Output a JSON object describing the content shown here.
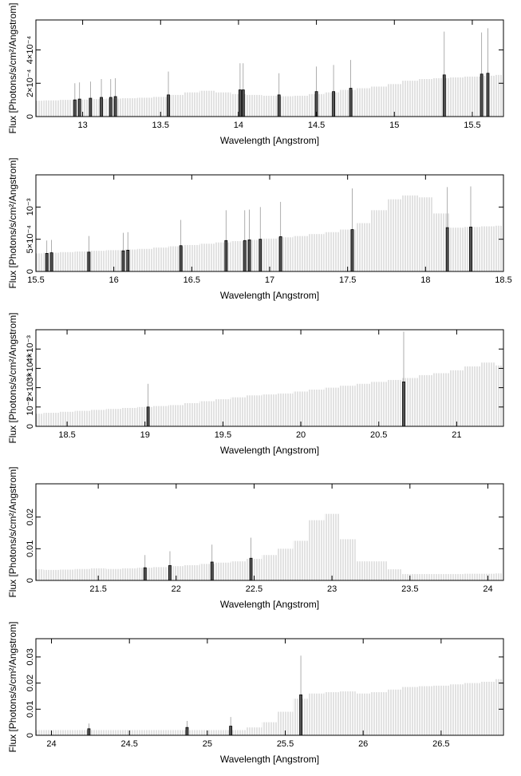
{
  "chart_data": [
    {
      "type": "bar",
      "xlabel": "Wavelength [Angstrom]",
      "ylabel": "Flux [Photons/s/cm²/Angstrom]",
      "color": "#c8c8c8",
      "xlim": [
        12.7,
        15.7
      ],
      "xticks": [
        13,
        13.5,
        14,
        14.5,
        15,
        15.5
      ],
      "ylim": [
        0,
        0.00058
      ],
      "yticks": [
        0,
        {
          "value": 0.0002,
          "label": "2×10⁻⁴"
        },
        {
          "value": 0.0004,
          "label": "4×10⁻⁴"
        }
      ],
      "x": [
        12.7,
        12.8,
        12.9,
        13.0,
        13.1,
        13.2,
        13.3,
        13.4,
        13.5,
        13.6,
        13.7,
        13.8,
        13.9,
        14.0,
        14.1,
        14.2,
        14.3,
        14.4,
        14.5,
        14.6,
        14.7,
        14.8,
        14.9,
        15.0,
        15.1,
        15.2,
        15.3,
        15.4,
        15.5,
        15.6,
        15.7
      ],
      "values": [
        9.5e-05,
        9.7e-05,
        0.0001,
        0.000102,
        0.000105,
        0.000108,
        0.00011,
        0.000113,
        0.000118,
        0.00013,
        0.000145,
        0.000155,
        0.000145,
        0.000135,
        0.00013,
        0.000125,
        0.000122,
        0.000125,
        0.000135,
        0.000145,
        0.00016,
        0.00017,
        0.00018,
        0.000195,
        0.000215,
        0.000225,
        0.00023,
        0.000235,
        0.00024,
        0.000245,
        0.00025
      ],
      "lines": {
        "x": [
          12.95,
          12.98,
          13.05,
          13.12,
          13.18,
          13.21,
          13.55,
          14.01,
          14.03,
          14.26,
          14.5,
          14.61,
          14.72,
          15.32,
          15.56,
          15.6
        ],
        "values": [
          0.0001,
          0.000105,
          0.00011,
          0.000115,
          0.000115,
          0.00012,
          0.00013,
          0.00016,
          0.00016,
          0.00013,
          0.00015,
          0.00015,
          0.00017,
          0.00025,
          0.000255,
          0.00026
        ],
        "errors": [
          0.0001,
          0.0001,
          0.0001,
          0.00011,
          0.00011,
          0.00011,
          0.00014,
          0.00016,
          0.00016,
          0.00013,
          0.00015,
          0.00016,
          0.00017,
          0.00026,
          0.00025,
          0.00027
        ]
      }
    },
    {
      "type": "bar",
      "xlabel": "Wavelength [Angstrom]",
      "ylabel": "Flux [Photons/s/cm²/Angstrom]",
      "color": "#c8c8c8",
      "xlim": [
        15.5,
        18.5
      ],
      "xticks": [
        15.5,
        16,
        16.5,
        17,
        17.5,
        18,
        18.5
      ],
      "ylim": [
        0,
        0.0015
      ],
      "yticks": [
        0,
        {
          "value": 0.0005,
          "label": "5×10⁻⁴"
        },
        {
          "value": 0.001,
          "label": "10⁻³"
        }
      ],
      "x": [
        15.5,
        15.6,
        15.7,
        15.8,
        15.9,
        16.0,
        16.1,
        16.2,
        16.3,
        16.4,
        16.5,
        16.6,
        16.7,
        16.8,
        16.9,
        17.0,
        17.1,
        17.2,
        17.3,
        17.4,
        17.5,
        17.6,
        17.7,
        17.8,
        17.9,
        18.0,
        18.1,
        18.2,
        18.3,
        18.4,
        18.5
      ],
      "values": [
        0.00028,
        0.00029,
        0.0003,
        0.00031,
        0.00032,
        0.00033,
        0.00034,
        0.00035,
        0.00037,
        0.00039,
        0.00041,
        0.00043,
        0.00045,
        0.00047,
        0.00049,
        0.00051,
        0.00053,
        0.00055,
        0.00058,
        0.00061,
        0.00065,
        0.00075,
        0.00095,
        0.00112,
        0.00118,
        0.00115,
        0.0009,
        0.00068,
        0.00069,
        0.0007,
        0.00071
      ],
      "lines": {
        "x": [
          15.57,
          15.6,
          15.84,
          16.06,
          16.09,
          16.43,
          16.72,
          16.84,
          16.87,
          16.94,
          17.07,
          17.53,
          18.14,
          18.29
        ],
        "values": [
          0.00028,
          0.00029,
          0.0003,
          0.00032,
          0.00033,
          0.0004,
          0.00048,
          0.00048,
          0.00049,
          0.0005,
          0.00054,
          0.00065,
          0.00068,
          0.00069
        ],
        "errors": [
          0.0002,
          0.0002,
          0.00025,
          0.00028,
          0.00028,
          0.0004,
          0.00047,
          0.00047,
          0.00047,
          0.0005,
          0.00054,
          0.00064,
          0.00063,
          0.00063
        ]
      }
    },
    {
      "type": "bar",
      "xlabel": "Wavelength [Angstrom]",
      "ylabel": "Flux [Photons/s/cm²/Angstrom]",
      "color": "#c8c8c8",
      "xlim": [
        18.3,
        21.3
      ],
      "xticks": [
        18.5,
        19,
        19.5,
        20,
        20.5,
        21
      ],
      "ylim": [
        0,
        0.005
      ],
      "yticks": [
        0,
        {
          "value": 0.001,
          "label": "10⁻³"
        },
        {
          "value": 0.002,
          "label": "2×10⁻³"
        },
        {
          "value": 0.003,
          "label": "3×10⁻³"
        },
        {
          "value": 0.004,
          "label": "4×10⁻³"
        }
      ],
      "x": [
        18.3,
        18.4,
        18.5,
        18.6,
        18.7,
        18.8,
        18.9,
        19.0,
        19.1,
        19.2,
        19.3,
        19.4,
        19.5,
        19.6,
        19.7,
        19.8,
        19.9,
        20.0,
        20.1,
        20.2,
        20.3,
        20.4,
        20.5,
        20.6,
        20.7,
        20.8,
        20.9,
        21.0,
        21.1,
        21.2,
        21.3
      ],
      "values": [
        0.00065,
        0.0007,
        0.00075,
        0.0008,
        0.00085,
        0.0009,
        0.00095,
        0.001,
        0.00105,
        0.0011,
        0.0012,
        0.0013,
        0.0014,
        0.0015,
        0.0016,
        0.00165,
        0.0017,
        0.0018,
        0.0019,
        0.002,
        0.0021,
        0.0022,
        0.0023,
        0.0024,
        0.0025,
        0.00265,
        0.00275,
        0.0029,
        0.0031,
        0.0033,
        0.00315
      ],
      "lines": {
        "x": [
          19.02,
          20.66
        ],
        "values": [
          0.001,
          0.0023
        ],
        "errors": [
          0.0012,
          0.0026
        ]
      }
    },
    {
      "type": "bar",
      "xlabel": "Wavelength [Angstrom]",
      "ylabel": "Flux [Photons/s/cm²/Angstrom]",
      "color": "#c8c8c8",
      "xlim": [
        21.1,
        24.1
      ],
      "xticks": [
        21.5,
        22,
        22.5,
        23,
        23.5,
        24
      ],
      "ylim": [
        0,
        0.0305
      ],
      "yticks": [
        0,
        0.01,
        0.02
      ],
      "x": [
        21.1,
        21.2,
        21.3,
        21.4,
        21.5,
        21.6,
        21.7,
        21.8,
        21.9,
        22.0,
        22.1,
        22.2,
        22.3,
        22.4,
        22.5,
        22.6,
        22.7,
        22.8,
        22.9,
        23.0,
        23.1,
        23.2,
        23.3,
        23.4,
        23.5,
        23.6,
        23.7,
        23.8,
        23.9,
        24.0,
        24.1
      ],
      "values": [
        0.0035,
        0.0033,
        0.0034,
        0.0036,
        0.0038,
        0.0036,
        0.0038,
        0.004,
        0.0042,
        0.0045,
        0.0048,
        0.0052,
        0.0056,
        0.006,
        0.0068,
        0.008,
        0.01,
        0.0125,
        0.019,
        0.021,
        0.013,
        0.006,
        0.006,
        0.0035,
        0.002,
        0.002,
        0.002,
        0.002,
        0.0021,
        0.0021,
        0.0022
      ],
      "lines": {
        "x": [
          21.8,
          21.96,
          22.23,
          22.48
        ],
        "values": [
          0.004,
          0.0047,
          0.0058,
          0.007
        ],
        "errors": [
          0.004,
          0.0045,
          0.0055,
          0.0065
        ]
      }
    },
    {
      "type": "bar",
      "xlabel": "Wavelength [Angstrom]",
      "ylabel": "Flux [Photons/s/cm²/Angstrom]",
      "color": "#c8c8c8",
      "xlim": [
        23.9,
        26.9
      ],
      "xticks": [
        24,
        24.5,
        25,
        25.5,
        26,
        26.5
      ],
      "ylim": [
        0,
        0.037
      ],
      "yticks": [
        0,
        0.01,
        0.02,
        0.03
      ],
      "x": [
        23.9,
        24.0,
        24.1,
        24.2,
        24.3,
        24.4,
        24.5,
        24.6,
        24.7,
        24.8,
        24.9,
        25.0,
        25.1,
        25.2,
        25.3,
        25.4,
        25.5,
        25.6,
        25.7,
        25.8,
        25.9,
        26.0,
        26.1,
        26.2,
        26.3,
        26.4,
        26.5,
        26.6,
        26.7,
        26.8,
        26.9
      ],
      "values": [
        0.002,
        0.002,
        0.002,
        0.002,
        0.002,
        0.002,
        0.002,
        0.002,
        0.002,
        0.002,
        0.002,
        0.002,
        0.002,
        0.002,
        0.003,
        0.005,
        0.009,
        0.014,
        0.016,
        0.0165,
        0.0168,
        0.016,
        0.0165,
        0.0175,
        0.0185,
        0.0188,
        0.019,
        0.0195,
        0.02,
        0.0205,
        0.0215
      ],
      "lines": {
        "x": [
          24.24,
          24.87,
          25.15,
          25.6
        ],
        "values": [
          0.0025,
          0.003,
          0.0035,
          0.0155
        ],
        "errors": [
          0.002,
          0.0025,
          0.0035,
          0.015
        ]
      }
    }
  ]
}
